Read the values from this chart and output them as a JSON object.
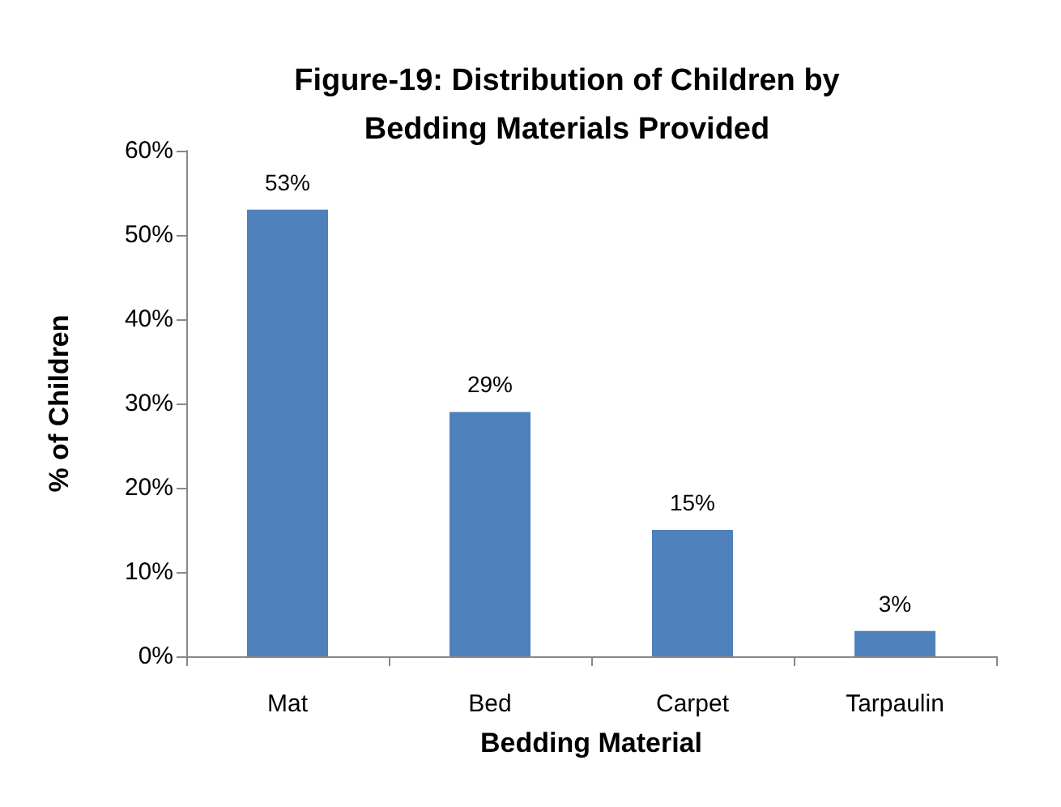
{
  "chart_data": {
    "type": "bar",
    "title": "Figure-19: Distribution of Children by\nBedding Materials Provided",
    "xlabel": "Bedding Material",
    "ylabel": "% of Children",
    "categories": [
      "Mat",
      "Bed",
      "Carpet",
      "Tarpaulin"
    ],
    "values": [
      53,
      29,
      15,
      3
    ],
    "value_labels": [
      "53%",
      "29%",
      "15%",
      "3%"
    ],
    "color": "#4f81bd",
    "ylim": [
      0,
      60
    ],
    "yticks": [
      {
        "value": 0,
        "label": "0%"
      },
      {
        "value": 10,
        "label": "10%"
      },
      {
        "value": 20,
        "label": "20%"
      },
      {
        "value": 30,
        "label": "30%"
      },
      {
        "value": 40,
        "label": "40%"
      },
      {
        "value": 50,
        "label": "50%"
      },
      {
        "value": 60,
        "label": "60%"
      }
    ],
    "grid": false
  }
}
